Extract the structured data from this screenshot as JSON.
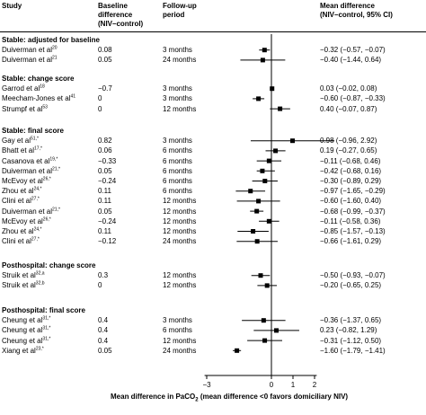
{
  "chart_data": {
    "type": "forest",
    "headers": {
      "study": "Study",
      "baseline_line1": "Baseline",
      "baseline_line2": "difference",
      "baseline_line3": "(NIV–control)",
      "followup_line1": "Follow-up",
      "followup_line2": "period",
      "md_line1": "Mean difference",
      "md_line2": "(NIV–control, 95% CI)"
    },
    "groups": [
      {
        "title": "Stable: adjusted for baseline",
        "rows": [
          {
            "study": "Duiverman et al",
            "ref": "20",
            "baseline": "0.08",
            "period": "3 months",
            "md": "−0.32 (−0.57, −0.07)",
            "est": -0.32,
            "lo": -0.57,
            "hi": -0.07
          },
          {
            "study": "Duiverman et al",
            "ref": "21",
            "baseline": "0.05",
            "period": "24 months",
            "md": "−0.40 (−1.44, 0.64)",
            "est": -0.4,
            "lo": -1.44,
            "hi": 0.64
          }
        ]
      },
      {
        "title": "Stable: change score",
        "rows": [
          {
            "study": "Garrod et al",
            "ref": "18",
            "baseline": "−0.7",
            "period": "3 months",
            "md": "0.03 (−0.02, 0.08)",
            "est": 0.03,
            "lo": -0.02,
            "hi": 0.08
          },
          {
            "study": "Meecham-Jones et al",
            "ref": "41",
            "baseline": "0",
            "period": "3 months",
            "md": "−0.60 (−0.87, −0.33)",
            "est": -0.6,
            "lo": -0.87,
            "hi": -0.33
          },
          {
            "study": "Strumpf et al",
            "ref": "53",
            "baseline": "0",
            "period": "12 months",
            "md": "0.40 (−0.07, 0.87)",
            "est": 0.4,
            "lo": -0.07,
            "hi": 0.87
          }
        ]
      },
      {
        "title": "Stable: final score",
        "rows": [
          {
            "study": "Gay et al",
            "ref": "51,*",
            "baseline": "0.82",
            "period": "3 months",
            "md": "0.98 (−0.96, 2.92)",
            "est": 0.98,
            "lo": -0.96,
            "hi": 2.92
          },
          {
            "study": "Bhatt et al",
            "ref": "17,*",
            "baseline": "0.06",
            "period": "6 months",
            "md": "0.19 (−0.27, 0.65)",
            "est": 0.19,
            "lo": -0.27,
            "hi": 0.65
          },
          {
            "study": "Casanova et al",
            "ref": "19,*",
            "baseline": "−0.33",
            "period": "6 months",
            "md": "−0.11 (−0.68, 0.46)",
            "est": -0.11,
            "lo": -0.68,
            "hi": 0.46
          },
          {
            "study": "Duiverman et al",
            "ref": "21,*",
            "baseline": "0.05",
            "period": "6 months",
            "md": "−0.42 (−0.68, 0.16)",
            "est": -0.42,
            "lo": -0.68,
            "hi": 0.16
          },
          {
            "study": "McEvoy et al",
            "ref": "26,*",
            "baseline": "−0.24",
            "period": "6 months",
            "md": "−0.30 (−0.89, 0.29)",
            "est": -0.3,
            "lo": -0.89,
            "hi": 0.29
          },
          {
            "study": "Zhou et al",
            "ref": "24,*",
            "baseline": "0.11",
            "period": "6 months",
            "md": "−0.97 (−1.65, −0.29)",
            "est": -0.97,
            "lo": -1.65,
            "hi": -0.29
          },
          {
            "study": "Clini et al",
            "ref": "27,*",
            "baseline": "0.11",
            "period": "12 months",
            "md": "−0.60 (−1.60, 0.40)",
            "est": -0.6,
            "lo": -1.6,
            "hi": 0.4
          },
          {
            "study": "Duiverman et al",
            "ref": "21,*",
            "baseline": "0.05",
            "period": "12 months",
            "md": "−0.68 (−0.99, −0.37)",
            "est": -0.68,
            "lo": -0.99,
            "hi": -0.37
          },
          {
            "study": "McEvoy et al",
            "ref": "26,*",
            "baseline": "−0.24",
            "period": "12 months",
            "md": "−0.11 (−0.58, 0.36)",
            "est": -0.11,
            "lo": -0.58,
            "hi": 0.36
          },
          {
            "study": "Zhou et al",
            "ref": "24,*",
            "baseline": "0.11",
            "period": "12 months",
            "md": "−0.85 (−1.57, −0.13)",
            "est": -0.85,
            "lo": -1.57,
            "hi": -0.13
          },
          {
            "study": "Clini et al",
            "ref": "27,*",
            "baseline": "−0.12",
            "period": "24 months",
            "md": "−0.66 (−1.61, 0.29)",
            "est": -0.66,
            "lo": -1.61,
            "hi": 0.29
          }
        ]
      },
      {
        "title": "Posthospital: change score",
        "rows": [
          {
            "study": "Struik et al",
            "ref": "32,a",
            "baseline": "0.3",
            "period": "12 months",
            "md": "−0.50 (−0.93, −0.07)",
            "est": -0.5,
            "lo": -0.93,
            "hi": -0.07
          },
          {
            "study": "Struik et al",
            "ref": "32,b",
            "baseline": "0",
            "period": "12 months",
            "md": "−0.20 (−0.65, 0.25)",
            "est": -0.2,
            "lo": -0.65,
            "hi": 0.25
          }
        ]
      },
      {
        "title": "Posthospital: final score",
        "rows": [
          {
            "study": "Cheung et al",
            "ref": "31,*",
            "baseline": "0.4",
            "period": "3 months",
            "md": "−0.36 (−1.37, 0.65)",
            "est": -0.36,
            "lo": -1.37,
            "hi": 0.65
          },
          {
            "study": "Cheung et al",
            "ref": "31,*",
            "baseline": "0.4",
            "period": "6 months",
            "md": "0.23 (−0.82, 1.29)",
            "est": 0.23,
            "lo": -0.82,
            "hi": 1.29
          },
          {
            "study": "Cheung et al",
            "ref": "31,*",
            "baseline": "0.4",
            "period": "12 months",
            "md": "−0.31 (−1.12, 0.50)",
            "est": -0.31,
            "lo": -1.12,
            "hi": 0.5
          },
          {
            "study": "Xiang et al",
            "ref": "23,*",
            "baseline": "0.05",
            "period": "24 months",
            "md": "−1.60 (−1.79, −1.41)",
            "est": -1.6,
            "lo": -1.79,
            "hi": -1.41
          }
        ]
      }
    ],
    "x_ticks": [
      -3,
      0,
      1,
      2
    ],
    "x_tick_labels": [
      "−3",
      "0",
      "1",
      "2"
    ],
    "xlabel": "Mean difference in PaCO",
    "xlabel_sub": "2",
    "xlabel_suffix": " (mean difference <0 favors domiciliary NIV)",
    "xlim": [
      -3.1,
      2.1
    ],
    "reference_line": 0,
    "marker": "square"
  }
}
